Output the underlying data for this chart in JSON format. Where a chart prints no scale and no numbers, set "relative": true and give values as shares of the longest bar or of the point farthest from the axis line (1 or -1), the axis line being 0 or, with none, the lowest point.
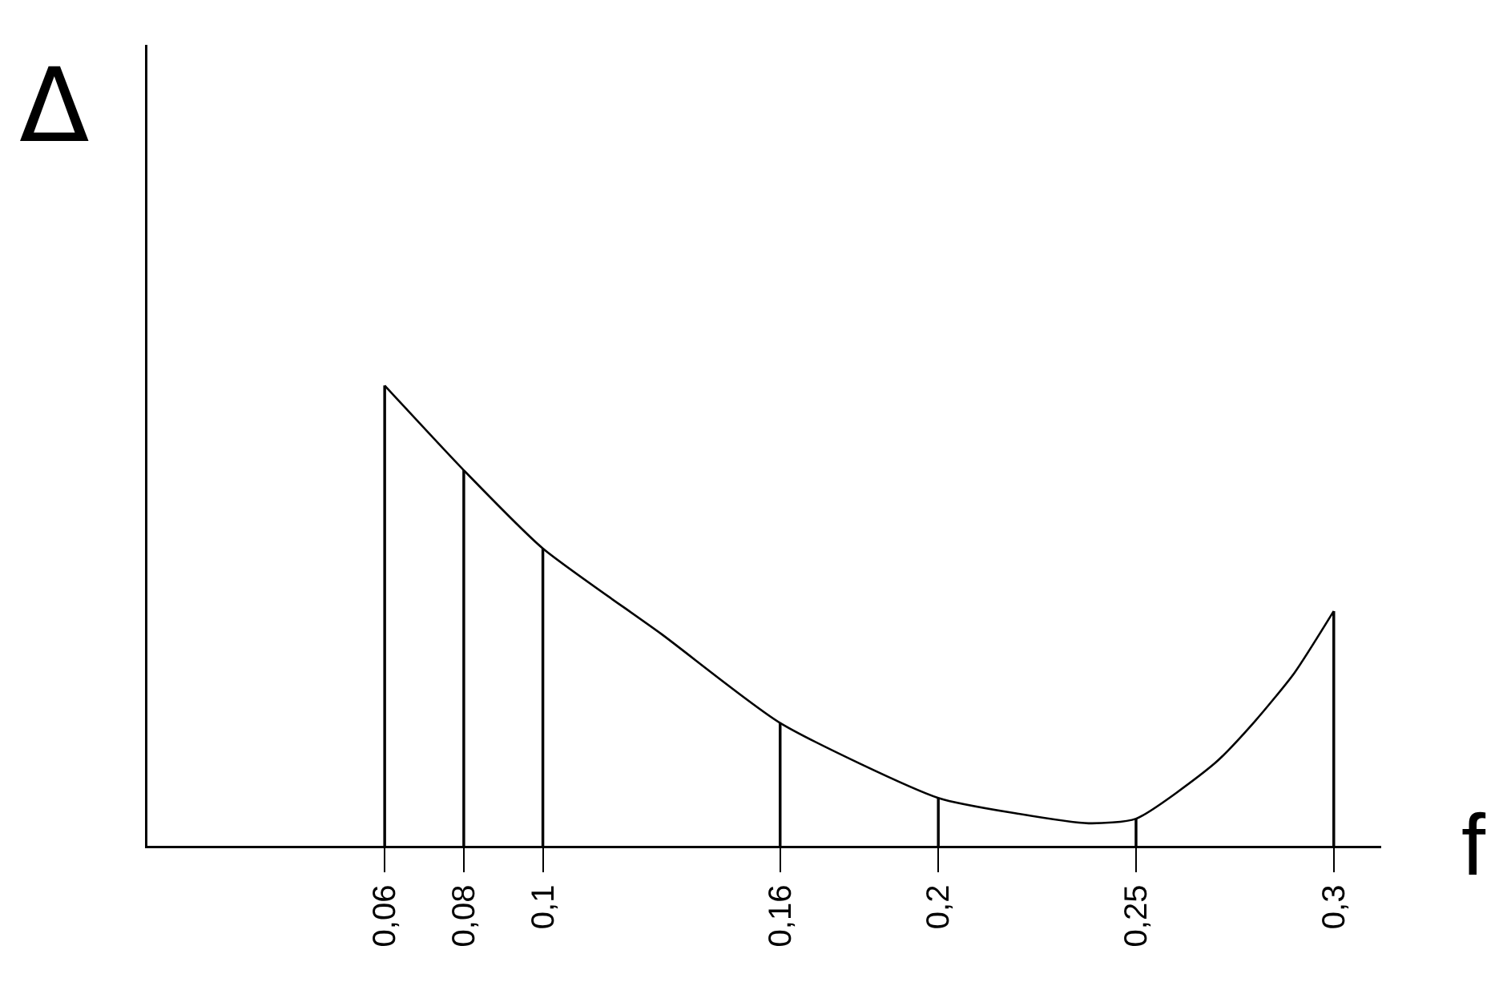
{
  "chart_data": {
    "type": "line",
    "relative": true,
    "xlabel": "f",
    "ylabel": "Δ",
    "xlim": [
      0,
      0.312
    ],
    "xticks": [
      {
        "value": 0.06,
        "label": "0,06"
      },
      {
        "value": 0.08,
        "label": "0,08"
      },
      {
        "value": 0.1,
        "label": "0,1"
      },
      {
        "value": 0.16,
        "label": "0,16"
      },
      {
        "value": 0.2,
        "label": "0,2"
      },
      {
        "value": 0.25,
        "label": "0,25"
      },
      {
        "value": 0.3,
        "label": "0,3"
      }
    ],
    "series": [
      {
        "color": "#000000",
        "x": [
          0.06,
          0.08,
          0.1,
          0.13,
          0.16,
          0.2,
          0.22,
          0.238,
          0.25,
          0.27,
          0.28,
          0.29,
          0.3
        ],
        "values": [
          1,
          0.816,
          0.646,
          0.46,
          0.267,
          0.104,
          0.07,
          0.049,
          0.059,
          0.18,
          0.27,
          0.375,
          0.51
        ]
      },
      {
        "type": "bar",
        "color": "#000000",
        "x": [
          0.06,
          0.08,
          0.1,
          0.16,
          0.2,
          0.25,
          0.3
        ],
        "values": [
          1,
          0.816,
          0.646,
          0.267,
          0.104,
          0.059,
          0.51
        ]
      }
    ],
    "grid": false,
    "marker": "none",
    "line_style": "solid"
  }
}
